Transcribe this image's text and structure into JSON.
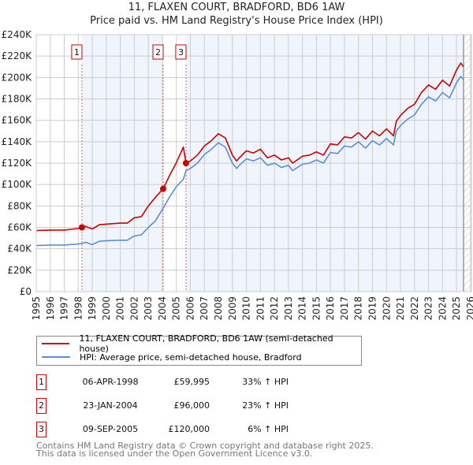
{
  "chart_data": {
    "type": "line",
    "title": "11, FLAXEN COURT, BRADFORD, BD6 1AW",
    "subtitle": "Price paid vs. HM Land Registry's House Price Index (HPI)",
    "xlim": [
      1995,
      2026
    ],
    "ylim": [
      0,
      240000
    ],
    "yticks": [
      0,
      20000,
      40000,
      60000,
      80000,
      100000,
      120000,
      140000,
      160000,
      180000,
      200000,
      220000,
      240000
    ],
    "ytick_labels": [
      "£0",
      "£20K",
      "£40K",
      "£60K",
      "£80K",
      "£100K",
      "£120K",
      "£140K",
      "£160K",
      "£180K",
      "£200K",
      "£220K",
      "£240K"
    ],
    "xtick_labels": [
      "1995",
      "1996",
      "1997",
      "1998",
      "1999",
      "2000",
      "2001",
      "2002",
      "2003",
      "2004",
      "2005",
      "2006",
      "2007",
      "2008",
      "2009",
      "2010",
      "2011",
      "2012",
      "2013",
      "2014",
      "2015",
      "2016",
      "2017",
      "2018",
      "2019",
      "2020",
      "2021",
      "2022",
      "2023",
      "2024",
      "2025",
      "2026"
    ],
    "grid": true,
    "x": [
      1995,
      1996,
      1997,
      1998,
      1998.26,
      1998.5,
      1999,
      1999.5,
      2000,
      2001,
      2001.5,
      2002,
      2002.5,
      2003,
      2003.5,
      2004.06,
      2004.5,
      2005,
      2005.5,
      2005.69,
      2006,
      2006.5,
      2007,
      2007.5,
      2008,
      2008.5,
      2009,
      2009.3,
      2009.5,
      2010,
      2010.5,
      2011,
      2011.5,
      2012,
      2012.5,
      2013,
      2013.3,
      2014,
      2014.5,
      2015,
      2015.5,
      2016,
      2016.5,
      2017,
      2017.5,
      2018,
      2018.5,
      2019,
      2019.5,
      2020,
      2020.5,
      2020.7,
      2021,
      2021.5,
      2022,
      2022.5,
      2023,
      2023.5,
      2024,
      2024.5,
      2025,
      2025.3,
      2025.5
    ],
    "series": [
      {
        "name": "11, FLAXEN COURT, BRADFORD, BD6 1AW (semi-detached house)",
        "color": "#cc0000",
        "values": [
          57,
          57.5,
          57.5,
          59,
          60,
          61,
          58.5,
          62.5,
          63,
          64,
          64,
          69,
          70,
          80,
          88,
          96,
          108,
          120.5,
          135,
          120,
          122,
          127.5,
          136,
          141,
          147.5,
          143.5,
          127.5,
          122,
          125,
          131.5,
          129.5,
          133,
          125,
          127.5,
          123,
          125,
          120,
          126.5,
          127.5,
          130.5,
          127.5,
          138,
          137,
          144.5,
          143.5,
          148.5,
          142.5,
          150,
          145.5,
          152,
          145.5,
          159,
          164.5,
          171,
          175,
          186,
          193,
          189,
          197.5,
          192,
          207,
          213.5,
          210
        ]
      },
      {
        "name": "HPI: Average price, semi-detached house, Bradford",
        "color": "#5b8fd4",
        "values": [
          43,
          43.5,
          43.5,
          44.5,
          45,
          46,
          44,
          47,
          47.5,
          48,
          48,
          52,
          53,
          60,
          66,
          78,
          88,
          98,
          105,
          113,
          115,
          120,
          128,
          133,
          139,
          135,
          120,
          115,
          118,
          124,
          122,
          125,
          118,
          120,
          116,
          118,
          113,
          119,
          120,
          123,
          120,
          130,
          129,
          136,
          135,
          140,
          134,
          141,
          137,
          143,
          137,
          150,
          155,
          161,
          165,
          175,
          182,
          178,
          186,
          181,
          195,
          201,
          198
        ]
      }
    ],
    "value_unit": "thousand GBP",
    "sales": [
      {
        "label": "1",
        "x": 1998.26,
        "price": 59995,
        "date": "06-APR-1998",
        "price_text": "£59,995",
        "hpi_text": "33% ↑ HPI"
      },
      {
        "label": "2",
        "x": 2004.06,
        "price": 96000,
        "date": "23-JAN-2004",
        "price_text": "£96,000",
        "hpi_text": "23% ↑ HPI"
      },
      {
        "label": "3",
        "x": 2005.69,
        "price": 120000,
        "date": "09-SEP-2005",
        "price_text": "£120,000",
        "hpi_text": "6% ↑ HPI"
      }
    ],
    "forecast_start": 2025.5,
    "legend_position": "below"
  },
  "footer": {
    "line1": "Contains HM Land Registry data © Crown copyright and database right 2025.",
    "line2": "This data is licensed under the Open Government Licence v3.0."
  }
}
